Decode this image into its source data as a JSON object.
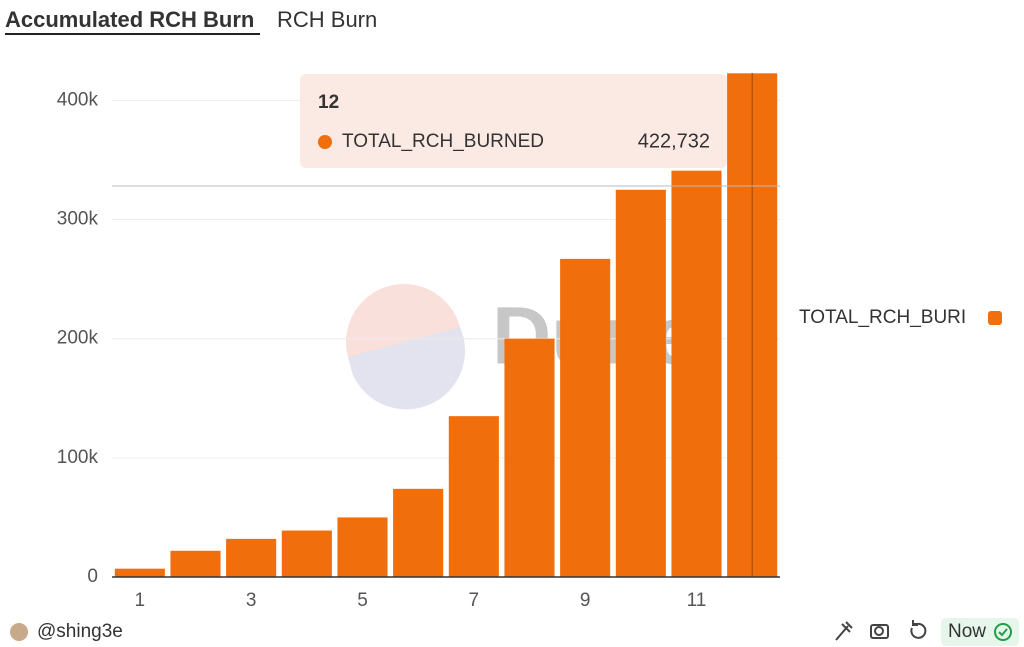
{
  "tabs": [
    "Accumulated RCH Burn",
    "RCH Burn"
  ],
  "chart_data": {
    "type": "bar",
    "x": [
      1,
      2,
      3,
      4,
      5,
      6,
      7,
      8,
      9,
      10,
      11,
      12
    ],
    "series": [
      {
        "name": "TOTAL_RCH_BURI",
        "color": "#f06e0c",
        "values": [
          7000,
          22000,
          32000,
          39000,
          50000,
          74000,
          135000,
          200000,
          267000,
          325000,
          341000,
          422732
        ]
      }
    ],
    "xlim": [
      0.5,
      12.5
    ],
    "xticks": [
      1,
      3,
      5,
      7,
      9,
      11
    ],
    "ylim": [
      0,
      423000
    ],
    "yticks": [
      0,
      {
        "value": 100000,
        "label": "100k"
      },
      {
        "value": 200000,
        "label": "200k"
      },
      {
        "value": 300000,
        "label": "300k"
      },
      {
        "value": 400000,
        "label": "400k"
      }
    ],
    "grid": true,
    "legend": "right",
    "tooltip": {
      "x": 12,
      "label": "TOTAL_RCH_BURNED",
      "value_label": "422,732"
    },
    "watermark": "Dune"
  },
  "footer": {
    "user": "@shing3e",
    "status": "Now"
  }
}
